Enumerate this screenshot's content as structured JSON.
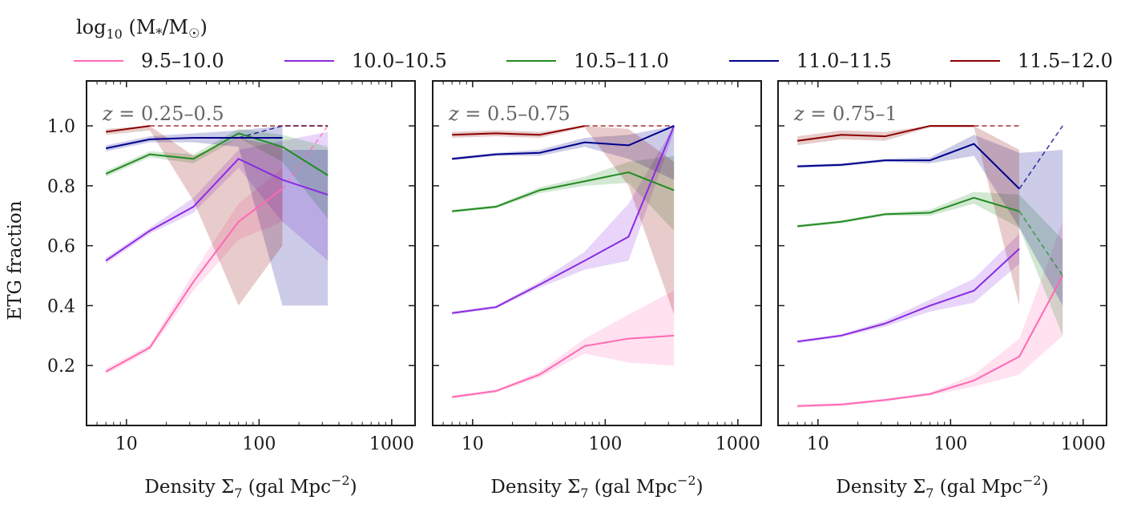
{
  "legend": {
    "title": "log10 (M*/M☉)",
    "title_parts": {
      "log": "log",
      "sub": "10",
      "mid": " (M",
      "star": "*",
      "slash": "/M",
      "sun": "☉",
      "close": ")"
    }
  },
  "chart_data": {
    "type": "line",
    "x_scale": "log",
    "xlim": [
      5,
      1500
    ],
    "ylim": [
      0.0,
      1.15
    ],
    "x_ticks": [
      10,
      100,
      1000
    ],
    "x_tick_labels": [
      "10",
      "100",
      "1000"
    ],
    "y_ticks": [
      0.2,
      0.4,
      0.6,
      0.8,
      1.0
    ],
    "y_tick_labels": [
      "0.2",
      "0.4",
      "0.6",
      "0.8",
      "1.0"
    ],
    "xlabel": "Density Σ7 (gal Mpc−2)",
    "xlabel_parts": {
      "main": "Density Σ",
      "sub": "7",
      "unit": " (gal Mpc",
      "sup": "−2",
      "close": ")"
    },
    "ylabel": "ETG fraction",
    "series_meta": [
      {
        "name": "9.5–10.0",
        "color": "#ff69b4"
      },
      {
        "name": "10.0–10.5",
        "color": "#8a2be2"
      },
      {
        "name": "10.5–11.0",
        "color": "#228b22"
      },
      {
        "name": "11.0–11.5",
        "color": "#00008b"
      },
      {
        "name": "11.5–12.0",
        "color": "#8b0000"
      }
    ],
    "panels": [
      {
        "label": "z = 0.25–0.5",
        "label_parts": {
          "z": "z",
          "rest": " = 0.25–0.5"
        },
        "series": [
          {
            "name": "9.5–10.0",
            "x": [
              7,
              15,
              32,
              70,
              150
            ],
            "y": [
              0.18,
              0.26,
              0.48,
              0.68,
              0.79
            ],
            "lower": [
              0.17,
              0.25,
              0.45,
              0.62,
              0.68
            ],
            "upper": [
              0.19,
              0.27,
              0.51,
              0.74,
              0.86
            ],
            "dashed_x": [
              150,
              330
            ],
            "dashed_y": [
              0.79,
              1.0
            ]
          },
          {
            "name": "10.0–10.5",
            "x": [
              7,
              15,
              32,
              70,
              150,
              330
            ],
            "y": [
              0.55,
              0.65,
              0.73,
              0.89,
              0.82,
              0.77
            ],
            "lower": [
              0.54,
              0.64,
              0.71,
              0.86,
              0.68,
              0.55
            ],
            "upper": [
              0.56,
              0.66,
              0.76,
              0.92,
              0.95,
              0.98
            ]
          },
          {
            "name": "10.5–11.0",
            "x": [
              7,
              15,
              32,
              70,
              150,
              330
            ],
            "y": [
              0.84,
              0.905,
              0.89,
              0.975,
              0.93,
              0.835
            ],
            "lower": [
              0.83,
              0.895,
              0.875,
              0.96,
              0.88,
              0.69
            ],
            "upper": [
              0.85,
              0.915,
              0.905,
              0.99,
              0.97,
              0.93
            ]
          },
          {
            "name": "11.0–11.5",
            "x": [
              7,
              15,
              32,
              70,
              150
            ],
            "y": [
              0.925,
              0.955,
              0.96,
              0.96,
              0.96
            ],
            "lower": [
              0.915,
              0.945,
              0.945,
              0.93,
              0.4
            ],
            "upper": [
              0.935,
              0.965,
              0.975,
              0.985,
              1.0
            ],
            "dashed_x": [
              70,
              150,
              330
            ],
            "dashed_y": [
              0.96,
              1.0,
              1.0
            ],
            "extra_band": {
              "x": [
                150,
                330
              ],
              "lower": [
                0.4,
                0.4
              ],
              "upper": [
                0.92,
                0.92
              ]
            }
          },
          {
            "name": "11.5–12.0",
            "x": [
              7,
              15
            ],
            "y": [
              0.98,
              1.0
            ],
            "lower": [
              0.97,
              0.985
            ],
            "upper": [
              0.99,
              1.0
            ],
            "dashed_x": [
              15,
              330
            ],
            "dashed_y": [
              1.0,
              1.0
            ],
            "extra_band": {
              "x": [
                15,
                32,
                70,
                150
              ],
              "lower": [
                0.985,
                0.75,
                0.4,
                0.6
              ],
              "upper": [
                1.0,
                0.9,
                0.96,
                0.93
              ]
            }
          }
        ]
      },
      {
        "label": "z = 0.5–0.75",
        "label_parts": {
          "z": "z",
          "rest": " = 0.5–0.75"
        },
        "series": [
          {
            "name": "9.5–10.0",
            "x": [
              7,
              15,
              32,
              70,
              150,
              330
            ],
            "y": [
              0.095,
              0.115,
              0.17,
              0.265,
              0.29,
              0.3
            ],
            "lower": [
              0.09,
              0.11,
              0.16,
              0.24,
              0.21,
              0.2
            ],
            "upper": [
              0.1,
              0.12,
              0.18,
              0.29,
              0.37,
              0.45
            ]
          },
          {
            "name": "10.0–10.5",
            "x": [
              7,
              15,
              32,
              70,
              150,
              330
            ],
            "y": [
              0.375,
              0.395,
              0.47,
              0.55,
              0.63,
              1.0
            ],
            "lower": [
              0.37,
              0.39,
              0.46,
              0.52,
              0.55,
              0.98
            ],
            "upper": [
              0.38,
              0.4,
              0.48,
              0.58,
              0.74,
              1.0
            ]
          },
          {
            "name": "10.5–11.0",
            "x": [
              7,
              15,
              32,
              70,
              150,
              330
            ],
            "y": [
              0.715,
              0.73,
              0.785,
              0.815,
              0.845,
              0.785
            ],
            "lower": [
              0.71,
              0.725,
              0.775,
              0.8,
              0.81,
              0.65
            ],
            "upper": [
              0.72,
              0.735,
              0.795,
              0.83,
              0.88,
              0.9
            ]
          },
          {
            "name": "11.0–11.5",
            "x": [
              7,
              15,
              32,
              70,
              150,
              330
            ],
            "y": [
              0.89,
              0.905,
              0.91,
              0.945,
              0.935,
              1.0
            ],
            "lower": [
              0.885,
              0.9,
              0.9,
              0.93,
              0.89,
              0.82
            ],
            "upper": [
              0.895,
              0.91,
              0.92,
              0.96,
              0.97,
              1.0
            ]
          },
          {
            "name": "11.5–12.0",
            "x": [
              7,
              15,
              32,
              70
            ],
            "y": [
              0.97,
              0.975,
              0.97,
              1.0
            ],
            "lower": [
              0.96,
              0.965,
              0.96,
              0.995
            ],
            "upper": [
              0.98,
              0.985,
              0.98,
              1.0
            ],
            "dashed_x": [
              70,
              330
            ],
            "dashed_y": [
              1.0,
              1.0
            ],
            "extra_band": {
              "x": [
                70,
                150,
                330
              ],
              "lower": [
                0.995,
                0.8,
                0.37
              ],
              "upper": [
                1.0,
                0.99,
                0.88
              ]
            }
          }
        ]
      },
      {
        "label": "z = 0.75–1",
        "label_parts": {
          "z": "z",
          "rest": " = 0.75–1"
        },
        "series": [
          {
            "name": "9.5–10.0",
            "x": [
              7,
              15,
              32,
              70,
              150,
              330,
              700
            ],
            "y": [
              0.065,
              0.07,
              0.085,
              0.105,
              0.15,
              0.23,
              0.5
            ],
            "lower": [
              0.06,
              0.065,
              0.08,
              0.1,
              0.13,
              0.17,
              0.3
            ],
            "upper": [
              0.07,
              0.075,
              0.09,
              0.11,
              0.17,
              0.29,
              0.68
            ]
          },
          {
            "name": "10.0–10.5",
            "x": [
              7,
              15,
              32,
              70,
              150,
              330
            ],
            "y": [
              0.28,
              0.3,
              0.34,
              0.4,
              0.45,
              0.59
            ],
            "lower": [
              0.275,
              0.295,
              0.33,
              0.38,
              0.41,
              0.54
            ],
            "upper": [
              0.285,
              0.305,
              0.35,
              0.42,
              0.49,
              0.64
            ]
          },
          {
            "name": "10.5–11.0",
            "x": [
              7,
              15,
              32,
              70,
              150,
              330
            ],
            "y": [
              0.665,
              0.68,
              0.705,
              0.71,
              0.76,
              0.715
            ],
            "lower": [
              0.66,
              0.675,
              0.7,
              0.7,
              0.74,
              0.66
            ],
            "upper": [
              0.67,
              0.685,
              0.71,
              0.72,
              0.78,
              0.77
            ],
            "dashed_x": [
              330,
              700
            ],
            "dashed_y": [
              0.715,
              0.5
            ],
            "extra_band": {
              "x": [
                330,
                700
              ],
              "lower": [
                0.66,
                0.3
              ],
              "upper": [
                0.77,
                0.62
              ]
            }
          },
          {
            "name": "11.0–11.5",
            "x": [
              7,
              15,
              32,
              70,
              150,
              330
            ],
            "y": [
              0.865,
              0.87,
              0.885,
              0.885,
              0.94,
              0.79
            ],
            "lower": [
              0.86,
              0.865,
              0.88,
              0.875,
              0.9,
              0.66
            ],
            "upper": [
              0.87,
              0.875,
              0.89,
              0.895,
              0.97,
              0.91
            ],
            "dashed_x": [
              330,
              700
            ],
            "dashed_y": [
              0.79,
              1.0
            ],
            "extra_band": {
              "x": [
                330,
                700
              ],
              "lower": [
                0.66,
                0.4
              ],
              "upper": [
                0.91,
                0.92
              ]
            }
          },
          {
            "name": "11.5–12.0",
            "x": [
              7,
              15,
              32,
              70,
              150
            ],
            "y": [
              0.95,
              0.97,
              0.965,
              1.0,
              1.0
            ],
            "lower": [
              0.935,
              0.955,
              0.95,
              0.995,
              0.995
            ],
            "upper": [
              0.965,
              0.985,
              0.98,
              1.0,
              1.0
            ],
            "dashed_x": [
              150,
              330
            ],
            "dashed_y": [
              1.0,
              1.0
            ],
            "extra_band": {
              "x": [
                150,
                330
              ],
              "lower": [
                0.995,
                0.4
              ],
              "upper": [
                1.0,
                0.92
              ]
            }
          }
        ]
      }
    ]
  }
}
